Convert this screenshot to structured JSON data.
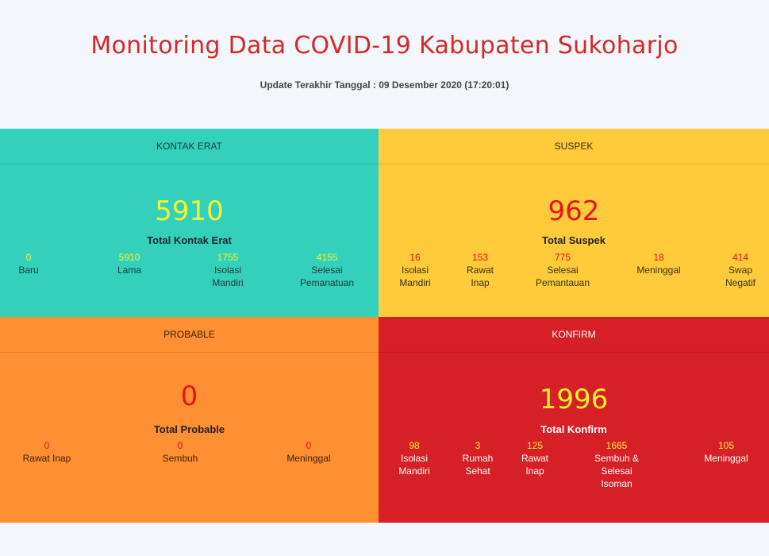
{
  "title": "Monitoring Data COVID-19 Kabupaten Sukoharjo",
  "update_text": "Update Terakhir Tanggal : 09 Desember 2020 (17:20:01)",
  "kontak_erat": {
    "header": "KONTAK ERAT",
    "total": "5910",
    "total_label": "Total Kontak Erat",
    "stats": [
      {
        "value": "0",
        "label": "Baru"
      },
      {
        "value": "5910",
        "label": "Lama"
      },
      {
        "value": "1755",
        "label": "Isolasi Mandiri"
      },
      {
        "value": "4155",
        "label": "Selesai Pemanatuan"
      }
    ]
  },
  "suspek": {
    "header": "SUSPEK",
    "total": "962",
    "total_label": "Total Suspek",
    "stats": [
      {
        "value": "16",
        "label": "Isolasi Mandiri"
      },
      {
        "value": "153",
        "label": "Rawat Inap"
      },
      {
        "value": "775",
        "label": "Selesai Pemantauan"
      },
      {
        "value": "18",
        "label": "Meninggal"
      },
      {
        "value": "414",
        "label": "Swap Negatif"
      }
    ]
  },
  "probable": {
    "header": "PROBABLE",
    "total": "0",
    "total_label": "Total Probable",
    "stats": [
      {
        "value": "0",
        "label": "Rawat Inap"
      },
      {
        "value": "0",
        "label": "Sembuh"
      },
      {
        "value": "0",
        "label": "Meninggal"
      }
    ]
  },
  "konfirm": {
    "header": "KONFIRM",
    "total": "1996",
    "total_label": "Total Konfirm",
    "stats": [
      {
        "value": "98",
        "label": "Isolasi Mandiri"
      },
      {
        "value": "3",
        "label": "Rumah Sehat"
      },
      {
        "value": "125",
        "label": "Rawat Inap"
      },
      {
        "value": "1665",
        "label": "Sembuh & Selesai Isoman"
      },
      {
        "value": "105",
        "label": "Meninggal"
      }
    ]
  },
  "colors": {
    "kontak_bg": "#33d1bc",
    "suspek_bg": "#ffcb3b",
    "probable_bg": "#ff8f33",
    "konfirm_bg": "#d61f26",
    "title_color": "#d62828"
  }
}
